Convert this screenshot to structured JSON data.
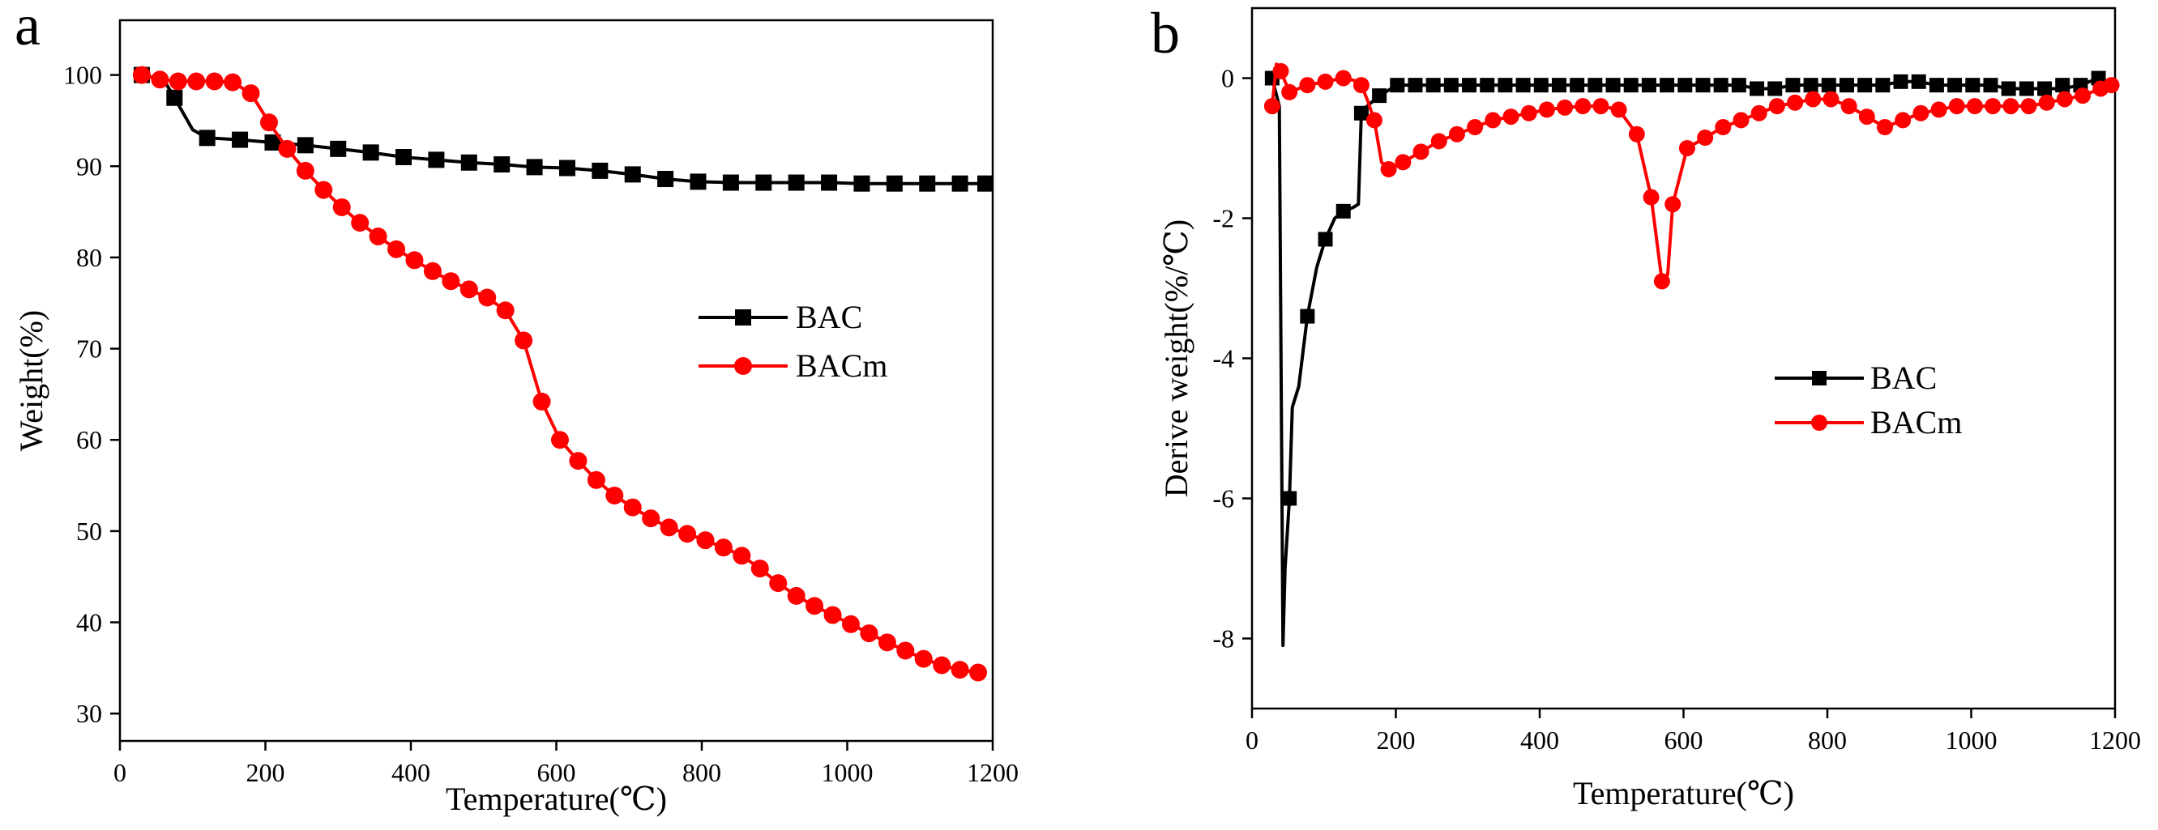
{
  "figure": {
    "panels": [
      "a",
      "b"
    ]
  },
  "chart_data": [
    {
      "type": "line",
      "panel_label": "a",
      "xlabel": "Temperature(℃)",
      "ylabel": "Weight(%)",
      "xlim": [
        0,
        1200
      ],
      "ylim": [
        27,
        106
      ],
      "xticks": [
        0,
        200,
        400,
        600,
        800,
        1000,
        1200
      ],
      "yticks": [
        30,
        40,
        50,
        60,
        70,
        80,
        90,
        100
      ],
      "legend_position": "center-right",
      "series": [
        {
          "name": "BAC",
          "color": "#000000",
          "marker": "square",
          "x": [
            30,
            75,
            120,
            165,
            210,
            255,
            300,
            345,
            390,
            435,
            480,
            525,
            570,
            615,
            660,
            705,
            750,
            795,
            840,
            885,
            930,
            975,
            1020,
            1065,
            1110,
            1155,
            1190
          ],
          "y": [
            100,
            97.5,
            93.1,
            92.9,
            92.6,
            92.3,
            91.9,
            91.5,
            91.0,
            90.7,
            90.4,
            90.2,
            89.9,
            89.8,
            89.5,
            89.1,
            88.6,
            88.3,
            88.2,
            88.2,
            88.2,
            88.2,
            88.1,
            88.1,
            88.1,
            88.1,
            88.1
          ],
          "line_points": [
            [
              30,
              100
            ],
            [
              60,
              99.5
            ],
            [
              75,
              97.5
            ],
            [
              100,
              94.0
            ],
            [
              120,
              93.1
            ],
            [
              165,
              92.9
            ],
            [
              210,
              92.6
            ],
            [
              255,
              92.3
            ],
            [
              300,
              91.9
            ],
            [
              345,
              91.5
            ],
            [
              390,
              91.0
            ],
            [
              435,
              90.7
            ],
            [
              480,
              90.4
            ],
            [
              525,
              90.2
            ],
            [
              570,
              89.9
            ],
            [
              615,
              89.8
            ],
            [
              660,
              89.5
            ],
            [
              705,
              89.1
            ],
            [
              750,
              88.6
            ],
            [
              795,
              88.3
            ],
            [
              840,
              88.2
            ],
            [
              885,
              88.2
            ],
            [
              930,
              88.2
            ],
            [
              975,
              88.2
            ],
            [
              1020,
              88.1
            ],
            [
              1065,
              88.1
            ],
            [
              1110,
              88.1
            ],
            [
              1155,
              88.1
            ],
            [
              1190,
              88.1
            ]
          ]
        },
        {
          "name": "BACm",
          "color": "#ff0000",
          "marker": "circle",
          "x": [
            30,
            55,
            80,
            105,
            130,
            155,
            180,
            205,
            230,
            255,
            280,
            305,
            330,
            355,
            380,
            405,
            430,
            455,
            480,
            505,
            530,
            555,
            580,
            605,
            630,
            655,
            680,
            705,
            730,
            755,
            780,
            805,
            830,
            855,
            880,
            905,
            930,
            955,
            980,
            1005,
            1030,
            1055,
            1080,
            1105,
            1130,
            1155,
            1180
          ],
          "y": [
            100,
            99.5,
            99.3,
            99.3,
            99.3,
            99.2,
            98.0,
            94.8,
            91.9,
            89.5,
            87.4,
            85.5,
            83.8,
            82.3,
            80.9,
            79.7,
            78.5,
            77.4,
            76.5,
            75.6,
            74.2,
            70.9,
            64.2,
            60.0,
            57.7,
            55.6,
            53.9,
            52.6,
            51.4,
            50.4,
            49.7,
            49.0,
            48.2,
            47.3,
            45.9,
            44.3,
            42.9,
            41.8,
            40.8,
            39.8,
            38.8,
            37.8,
            36.9,
            36.0,
            35.3,
            34.8,
            34.5
          ],
          "line_points": [
            [
              30,
              100
            ],
            [
              55,
              99.5
            ],
            [
              80,
              99.3
            ],
            [
              105,
              99.3
            ],
            [
              130,
              99.3
            ],
            [
              155,
              99.2
            ],
            [
              180,
              98.0
            ],
            [
              205,
              94.8
            ],
            [
              230,
              91.9
            ],
            [
              255,
              89.5
            ],
            [
              280,
              87.4
            ],
            [
              305,
              85.5
            ],
            [
              330,
              83.8
            ],
            [
              355,
              82.3
            ],
            [
              380,
              80.9
            ],
            [
              405,
              79.7
            ],
            [
              430,
              78.5
            ],
            [
              455,
              77.4
            ],
            [
              480,
              76.5
            ],
            [
              505,
              75.6
            ],
            [
              530,
              74.2
            ],
            [
              555,
              70.9
            ],
            [
              580,
              64.2
            ],
            [
              605,
              60.0
            ],
            [
              630,
              57.7
            ],
            [
              655,
              55.6
            ],
            [
              680,
              53.9
            ],
            [
              705,
              52.6
            ],
            [
              730,
              51.4
            ],
            [
              755,
              50.4
            ],
            [
              780,
              49.7
            ],
            [
              805,
              49.0
            ],
            [
              830,
              48.2
            ],
            [
              855,
              47.3
            ],
            [
              880,
              45.9
            ],
            [
              905,
              44.3
            ],
            [
              930,
              42.9
            ],
            [
              955,
              41.8
            ],
            [
              980,
              40.8
            ],
            [
              1005,
              39.8
            ],
            [
              1030,
              38.8
            ],
            [
              1055,
              37.8
            ],
            [
              1080,
              36.9
            ],
            [
              1105,
              36.0
            ],
            [
              1130,
              35.3
            ],
            [
              1155,
              34.8
            ],
            [
              1180,
              34.5
            ],
            [
              1190,
              34.4
            ]
          ]
        }
      ]
    },
    {
      "type": "line",
      "panel_label": "b",
      "xlabel": "Temperature(℃)",
      "ylabel": "Derive weight(%/℃)",
      "xlim": [
        0,
        1200
      ],
      "ylim": [
        -9,
        1
      ],
      "xticks": [
        0,
        200,
        400,
        600,
        800,
        1000,
        1200
      ],
      "yticks": [
        0,
        -2,
        -4,
        -6,
        -8
      ],
      "legend_position": "center-right",
      "series": [
        {
          "name": "BAC",
          "color": "#000000",
          "marker": "square",
          "x": [
            28,
            52,
            77,
            102,
            127,
            152,
            177,
            202,
            227,
            252,
            277,
            302,
            327,
            352,
            377,
            402,
            427,
            452,
            477,
            502,
            527,
            552,
            577,
            602,
            627,
            652,
            677,
            702,
            727,
            752,
            777,
            802,
            827,
            852,
            877,
            902,
            927,
            952,
            977,
            1002,
            1027,
            1052,
            1077,
            1102,
            1127,
            1152,
            1177
          ],
          "y": [
            0.0,
            -6.0,
            -3.4,
            -2.3,
            -1.9,
            -0.5,
            -0.25,
            -0.1,
            -0.1,
            -0.1,
            -0.1,
            -0.1,
            -0.1,
            -0.1,
            -0.1,
            -0.1,
            -0.1,
            -0.1,
            -0.1,
            -0.1,
            -0.1,
            -0.1,
            -0.1,
            -0.1,
            -0.1,
            -0.1,
            -0.1,
            -0.15,
            -0.15,
            -0.1,
            -0.1,
            -0.1,
            -0.1,
            -0.1,
            -0.1,
            -0.05,
            -0.05,
            -0.1,
            -0.1,
            -0.1,
            -0.1,
            -0.15,
            -0.15,
            -0.15,
            -0.1,
            -0.1,
            0.0
          ],
          "line_points": [
            [
              28,
              0.0
            ],
            [
              38,
              -0.4
            ],
            [
              43,
              -8.1
            ],
            [
              46,
              -7.0
            ],
            [
              52,
              -6.0
            ],
            [
              56,
              -4.7
            ],
            [
              65,
              -4.4
            ],
            [
              77,
              -3.4
            ],
            [
              90,
              -2.7
            ],
            [
              102,
              -2.3
            ],
            [
              115,
              -2.0
            ],
            [
              127,
              -1.9
            ],
            [
              140,
              -1.85
            ],
            [
              148,
              -1.8
            ],
            [
              152,
              -0.5
            ],
            [
              160,
              -0.4
            ],
            [
              177,
              -0.25
            ],
            [
              202,
              -0.1
            ],
            [
              227,
              -0.1
            ],
            [
              677,
              -0.1
            ],
            [
              702,
              -0.15
            ],
            [
              727,
              -0.15
            ],
            [
              752,
              -0.1
            ],
            [
              877,
              -0.1
            ],
            [
              902,
              -0.05
            ],
            [
              927,
              -0.05
            ],
            [
              952,
              -0.1
            ],
            [
              1027,
              -0.1
            ],
            [
              1052,
              -0.15
            ],
            [
              1127,
              -0.15
            ],
            [
              1152,
              -0.1
            ],
            [
              1177,
              0.0
            ],
            [
              1195,
              -0.1
            ]
          ]
        },
        {
          "name": "BACm",
          "color": "#ff0000",
          "marker": "circle",
          "x": [
            28,
            40,
            52,
            77,
            102,
            127,
            152,
            170,
            190,
            210,
            235,
            260,
            285,
            310,
            335,
            360,
            385,
            410,
            435,
            460,
            485,
            510,
            535,
            555,
            570,
            585,
            605,
            630,
            655,
            680,
            705,
            730,
            755,
            780,
            805,
            830,
            855,
            880,
            905,
            930,
            955,
            980,
            1005,
            1030,
            1055,
            1080,
            1105,
            1130,
            1155,
            1180,
            1195
          ],
          "y": [
            -0.4,
            0.1,
            -0.2,
            -0.1,
            -0.05,
            0.0,
            -0.1,
            -0.6,
            -1.3,
            -1.2,
            -1.05,
            -0.9,
            -0.8,
            -0.7,
            -0.6,
            -0.55,
            -0.5,
            -0.45,
            -0.42,
            -0.4,
            -0.4,
            -0.45,
            -0.8,
            -1.7,
            -2.9,
            -1.8,
            -1.0,
            -0.85,
            -0.7,
            -0.6,
            -0.5,
            -0.4,
            -0.35,
            -0.3,
            -0.3,
            -0.4,
            -0.55,
            -0.7,
            -0.6,
            -0.5,
            -0.45,
            -0.4,
            -0.4,
            -0.4,
            -0.4,
            -0.4,
            -0.35,
            -0.3,
            -0.25,
            -0.15,
            -0.1
          ],
          "line_points": [
            [
              28,
              -0.4
            ],
            [
              34,
              0.2
            ],
            [
              40,
              0.1
            ],
            [
              52,
              -0.2
            ],
            [
              77,
              -0.1
            ],
            [
              102,
              -0.05
            ],
            [
              127,
              0.0
            ],
            [
              150,
              -0.05
            ],
            [
              160,
              -0.3
            ],
            [
              170,
              -0.6
            ],
            [
              180,
              -1.2
            ],
            [
              190,
              -1.3
            ],
            [
              210,
              -1.2
            ],
            [
              235,
              -1.05
            ],
            [
              260,
              -0.9
            ],
            [
              285,
              -0.8
            ],
            [
              310,
              -0.7
            ],
            [
              335,
              -0.6
            ],
            [
              360,
              -0.55
            ],
            [
              385,
              -0.5
            ],
            [
              410,
              -0.45
            ],
            [
              435,
              -0.42
            ],
            [
              460,
              -0.4
            ],
            [
              485,
              -0.4
            ],
            [
              510,
              -0.45
            ],
            [
              535,
              -0.8
            ],
            [
              555,
              -1.7
            ],
            [
              570,
              -2.9
            ],
            [
              578,
              -2.8
            ],
            [
              585,
              -1.8
            ],
            [
              605,
              -1.0
            ],
            [
              630,
              -0.85
            ],
            [
              655,
              -0.7
            ],
            [
              680,
              -0.6
            ],
            [
              705,
              -0.5
            ],
            [
              730,
              -0.4
            ],
            [
              755,
              -0.35
            ],
            [
              780,
              -0.3
            ],
            [
              805,
              -0.3
            ],
            [
              830,
              -0.4
            ],
            [
              855,
              -0.55
            ],
            [
              880,
              -0.7
            ],
            [
              905,
              -0.6
            ],
            [
              930,
              -0.5
            ],
            [
              955,
              -0.45
            ],
            [
              980,
              -0.4
            ],
            [
              1005,
              -0.4
            ],
            [
              1030,
              -0.4
            ],
            [
              1055,
              -0.4
            ],
            [
              1080,
              -0.4
            ],
            [
              1105,
              -0.35
            ],
            [
              1130,
              -0.3
            ],
            [
              1155,
              -0.25
            ],
            [
              1180,
              -0.15
            ],
            [
              1195,
              -0.1
            ]
          ]
        }
      ]
    }
  ]
}
